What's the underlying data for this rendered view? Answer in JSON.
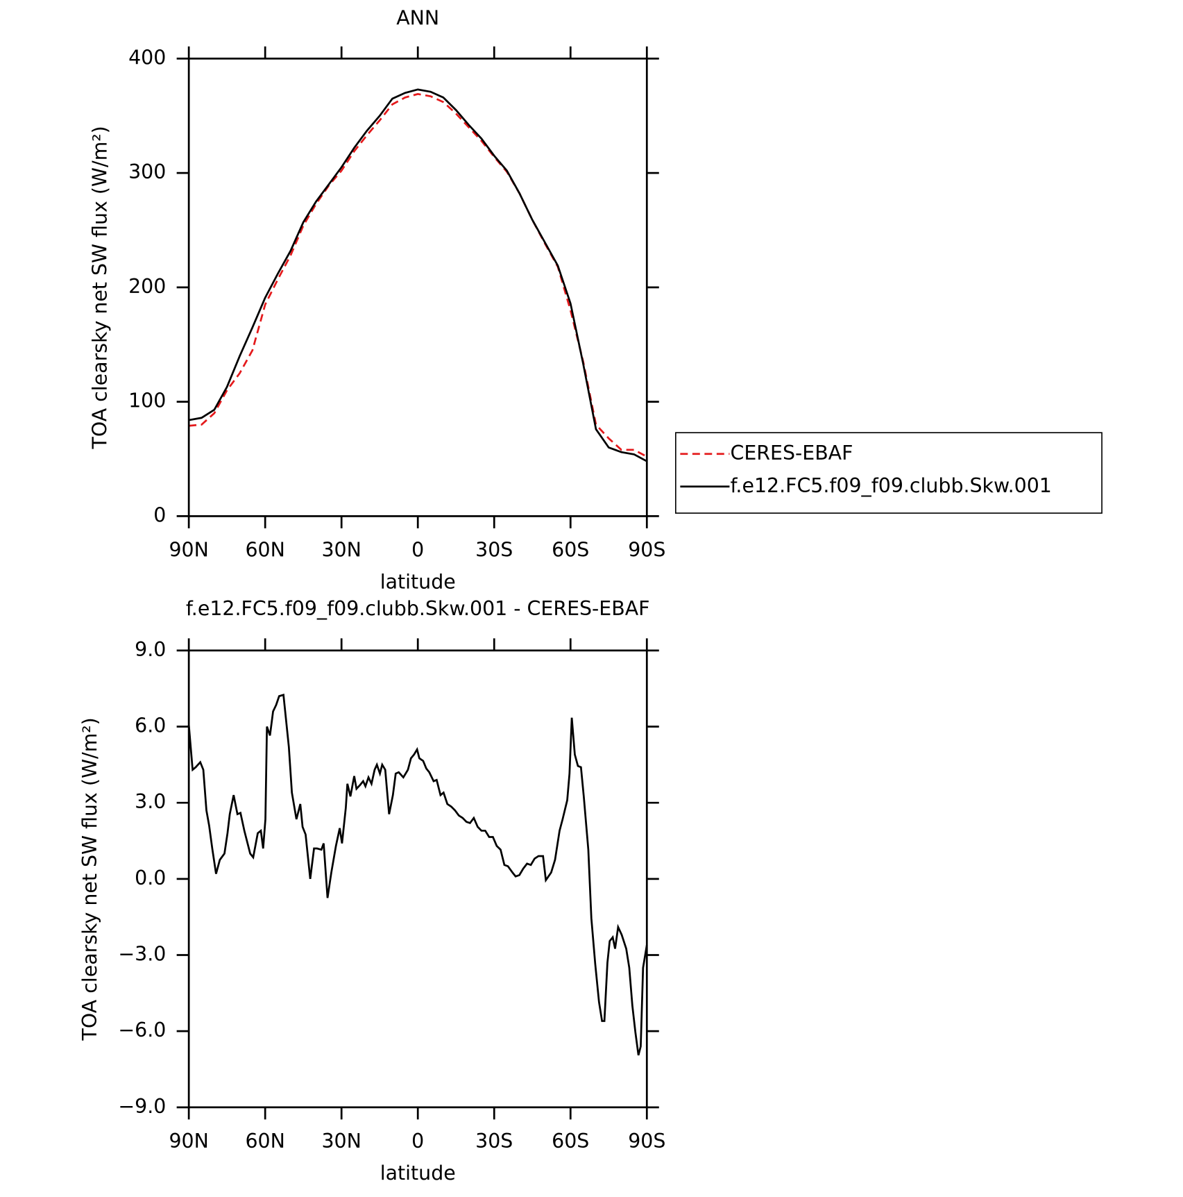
{
  "chart_data": [
    {
      "type": "line",
      "title": "ANN",
      "xlabel": "latitude",
      "ylabel": "TOA clearsky net SW flux (W/m²)",
      "x": [
        90,
        85,
        80,
        75,
        70,
        65,
        60,
        55,
        50,
        45,
        40,
        35,
        30,
        25,
        20,
        15,
        10,
        5,
        0,
        -5,
        -10,
        -15,
        -20,
        -25,
        -30,
        -35,
        -40,
        -45,
        -50,
        -55,
        -60,
        -65,
        -70,
        -75,
        -80,
        -85,
        -90
      ],
      "series": [
        {
          "name": "CERES-EBAF",
          "color": "#e41a1c",
          "linestyle": "dashed",
          "values": [
            79,
            80,
            90,
            110,
            125,
            145,
            185,
            207,
            228,
            254,
            273,
            289,
            302,
            319,
            333,
            346,
            360,
            366,
            369,
            367,
            362,
            352,
            340,
            328,
            314,
            301,
            282,
            259,
            238,
            218,
            180,
            135,
            80,
            68,
            58,
            58,
            52
          ]
        },
        {
          "name": "f.e12.FC5.f09_f09.clubb.Skw.001",
          "color": "#000000",
          "linestyle": "solid",
          "values": [
            84,
            86,
            93,
            113,
            140,
            165,
            191,
            212,
            232,
            257,
            275,
            290,
            305,
            322,
            337,
            350,
            365,
            370,
            373,
            371,
            366,
            355,
            342,
            330,
            315,
            302,
            282,
            259,
            239,
            219,
            186,
            133,
            76,
            60,
            56,
            54,
            48
          ]
        }
      ],
      "xlim": [
        90,
        -90
      ],
      "xticks": [
        {
          "value": 90,
          "label": "90N"
        },
        {
          "value": 60,
          "label": "60N"
        },
        {
          "value": 30,
          "label": "30N"
        },
        0,
        {
          "value": -30,
          "label": "30S"
        },
        {
          "value": -60,
          "label": "60S"
        },
        {
          "value": -90,
          "label": "90S"
        }
      ],
      "ylim": [
        0,
        400
      ],
      "yticks": [
        0,
        100,
        200,
        300,
        400
      ],
      "legend": "right"
    },
    {
      "type": "line",
      "title": "f.e12.FC5.f09_f09.clubb.Skw.001 - CERES-EBAF",
      "xlabel": "latitude",
      "ylabel": "TOA clearsky net SW flux (W/m²)",
      "color": "#000000",
      "x": [
        90,
        88.5,
        87.3,
        85.5,
        84.3,
        83.1,
        82,
        80.8,
        79.3,
        77.8,
        76,
        74.8,
        73.9,
        72.4,
        70.9,
        69.7,
        68.2,
        65.9,
        64.7,
        62.9,
        61.7,
        60.8,
        59.9,
        59.3,
        58.1,
        56.9,
        55.7,
        54.5,
        52.8,
        50.7,
        49.5,
        47.7,
        46.2,
        45.3,
        44.1,
        42.3,
        40.8,
        39.6,
        37.9,
        37,
        35.5,
        34,
        32.2,
        30.7,
        29.8,
        28.3,
        27.7,
        26.5,
        25,
        24.1,
        22.7,
        21.5,
        20.6,
        19.4,
        18.2,
        17,
        16.1,
        14.9,
        14,
        12.8,
        11.3,
        9.8,
        8.7,
        7.5,
        5.7,
        3.9,
        2.7,
        1.5,
        0.3,
        -0.6,
        -2.1,
        -3.3,
        -4.5,
        -6.2,
        -7.4,
        -8.9,
        -10.1,
        -11.6,
        -13.1,
        -14.6,
        -16.1,
        -17.6,
        -19.1,
        -20.5,
        -22,
        -23.5,
        -25,
        -26.5,
        -28,
        -29.5,
        -31,
        -32.5,
        -34,
        -35.4,
        -37.2,
        -38.4,
        -39.9,
        -41.4,
        -42.9,
        -44.4,
        -45.9,
        -47.4,
        -49.2,
        -50.3,
        -52.4,
        -53.9,
        -55.7,
        -56.9,
        -58.7,
        -59.6,
        -60.5,
        -61.7,
        -62.9,
        -64.1,
        -65.2,
        -67,
        -68.2,
        -69.7,
        -71.2,
        -72.4,
        -73.3,
        -74.5,
        -75.4,
        -76.6,
        -77.5,
        -78.7,
        -80.1,
        -81.9,
        -83.1,
        -84.3,
        -85.5,
        -86.7,
        -87.6,
        -88.5,
        -90
      ],
      "values": [
        6.07,
        4.3,
        4.4,
        4.6,
        4.3,
        2.7,
        2.1,
        1.2,
        0.2,
        0.75,
        1.0,
        1.8,
        2.55,
        3.3,
        2.55,
        2.6,
        1.9,
        1.0,
        0.85,
        1.8,
        1.9,
        1.2,
        2.35,
        6.0,
        5.65,
        6.6,
        6.85,
        7.2,
        7.25,
        5.2,
        3.4,
        2.35,
        2.95,
        2.05,
        1.75,
        0.0,
        1.2,
        1.2,
        1.15,
        1.4,
        -0.75,
        0.25,
        1.3,
        2.0,
        1.4,
        2.8,
        3.75,
        3.25,
        4.05,
        3.55,
        3.7,
        3.85,
        3.65,
        4.0,
        3.75,
        4.3,
        4.5,
        4.15,
        4.5,
        4.3,
        2.55,
        3.3,
        4.15,
        4.2,
        4.0,
        4.3,
        4.75,
        4.9,
        5.1,
        4.75,
        4.65,
        4.35,
        4.2,
        3.85,
        3.9,
        3.3,
        3.4,
        2.95,
        2.85,
        2.7,
        2.5,
        2.4,
        2.25,
        2.2,
        2.4,
        2.05,
        1.9,
        1.9,
        1.65,
        1.65,
        1.3,
        1.15,
        0.55,
        0.5,
        0.25,
        0.1,
        0.15,
        0.4,
        0.6,
        0.55,
        0.8,
        0.9,
        0.9,
        -0.05,
        0.25,
        0.75,
        1.9,
        2.35,
        3.1,
        4.15,
        6.35,
        4.9,
        4.45,
        4.4,
        3.25,
        1.15,
        -1.55,
        -3.35,
        -4.85,
        -5.6,
        -5.6,
        -3.3,
        -2.45,
        -2.3,
        -2.75,
        -1.9,
        -2.2,
        -2.75,
        -3.5,
        -5.0,
        -6.05,
        -6.95,
        -6.6,
        -3.5,
        -2.6
      ],
      "xlim": [
        90,
        -90
      ],
      "xticks": [
        {
          "value": 90,
          "label": "90N"
        },
        {
          "value": 60,
          "label": "60N"
        },
        {
          "value": 30,
          "label": "30N"
        },
        0,
        {
          "value": -30,
          "label": "30S"
        },
        {
          "value": -60,
          "label": "60S"
        },
        {
          "value": -90,
          "label": "90S"
        }
      ],
      "ylim": [
        -9,
        9
      ],
      "yticks": [
        {
          "value": -9,
          "label": "−9.0"
        },
        {
          "value": -6,
          "label": "−6.0"
        },
        {
          "value": -3,
          "label": "−3.0"
        },
        {
          "value": 0,
          "label": "0.0"
        },
        {
          "value": 3,
          "label": "3.0"
        },
        {
          "value": 6,
          "label": "6.0"
        },
        {
          "value": 9,
          "label": "9.0"
        }
      ]
    }
  ]
}
